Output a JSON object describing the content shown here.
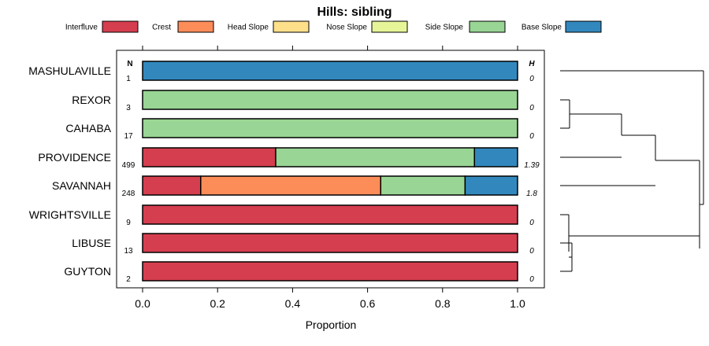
{
  "chart_data": {
    "type": "bar",
    "stacked": true,
    "orientation": "horizontal",
    "title": "Hills: sibling",
    "xlabel": "Proportion",
    "ylabel": "",
    "xlim": [
      0,
      1
    ],
    "xticks": [
      "0.0",
      "0.2",
      "0.4",
      "0.6",
      "0.8",
      "1.0"
    ],
    "xtick_values": [
      0,
      0.2,
      0.4,
      0.6,
      0.8,
      1.0
    ],
    "n_header": "N",
    "h_header": "H",
    "legend_position": "top",
    "legend": [
      {
        "name": "Interfluve",
        "color": "#D53E4F"
      },
      {
        "name": "Crest",
        "color": "#FC8D59"
      },
      {
        "name": "Head Slope",
        "color": "#FEE08B"
      },
      {
        "name": "Nose Slope",
        "color": "#E6F598"
      },
      {
        "name": "Side Slope",
        "color": "#99D594"
      },
      {
        "name": "Base Slope",
        "color": "#3288BD"
      }
    ],
    "categories": [
      "MASHULAVILLE",
      "REXOR",
      "CAHABA",
      "PROVIDENCE",
      "SAVANNAH",
      "WRIGHTSVILLE",
      "LIBUSE",
      "GUYTON"
    ],
    "n": [
      "1",
      "3",
      "17",
      "499",
      "248",
      "9",
      "13",
      "2"
    ],
    "h": [
      "0",
      "0",
      "0",
      "1.39",
      "1.8",
      "0",
      "0",
      "0"
    ],
    "series": [
      {
        "name": "Interfluve",
        "values": [
          0,
          0,
          0,
          0.355,
          0.155,
          1,
          1,
          1
        ]
      },
      {
        "name": "Crest",
        "values": [
          0,
          0,
          0,
          0,
          0.48,
          0,
          0,
          0
        ]
      },
      {
        "name": "Head Slope",
        "values": [
          0,
          0,
          0,
          0,
          0,
          0,
          0,
          0
        ]
      },
      {
        "name": "Nose Slope",
        "values": [
          0,
          0,
          0,
          0,
          0,
          0,
          0,
          0
        ]
      },
      {
        "name": "Side Slope",
        "values": [
          0,
          1,
          1,
          0.53,
          0.225,
          0,
          0,
          0
        ]
      },
      {
        "name": "Base Slope",
        "values": [
          1,
          0,
          0,
          0.115,
          0.14,
          0,
          0,
          0
        ]
      }
    ],
    "dendrogram": {
      "merges": [
        [
          "REXOR",
          "CAHABA"
        ],
        [
          "REXOR+CAHABA",
          "PROVIDENCE"
        ],
        [
          "REXOR+CAHABA+PROVIDENCE",
          "SAVANNAH"
        ],
        [
          "LIBUSE",
          "GUYTON"
        ],
        [
          "WRIGHTSVILLE",
          "LIBUSE+GUYTON"
        ],
        [
          "REXOR+CAHABA+PROVIDENCE+SAVANNAH",
          "WRIGHTSVILLE+LIBUSE+GUYTON"
        ],
        [
          "MASHULAVILLE",
          "REST"
        ]
      ]
    }
  }
}
